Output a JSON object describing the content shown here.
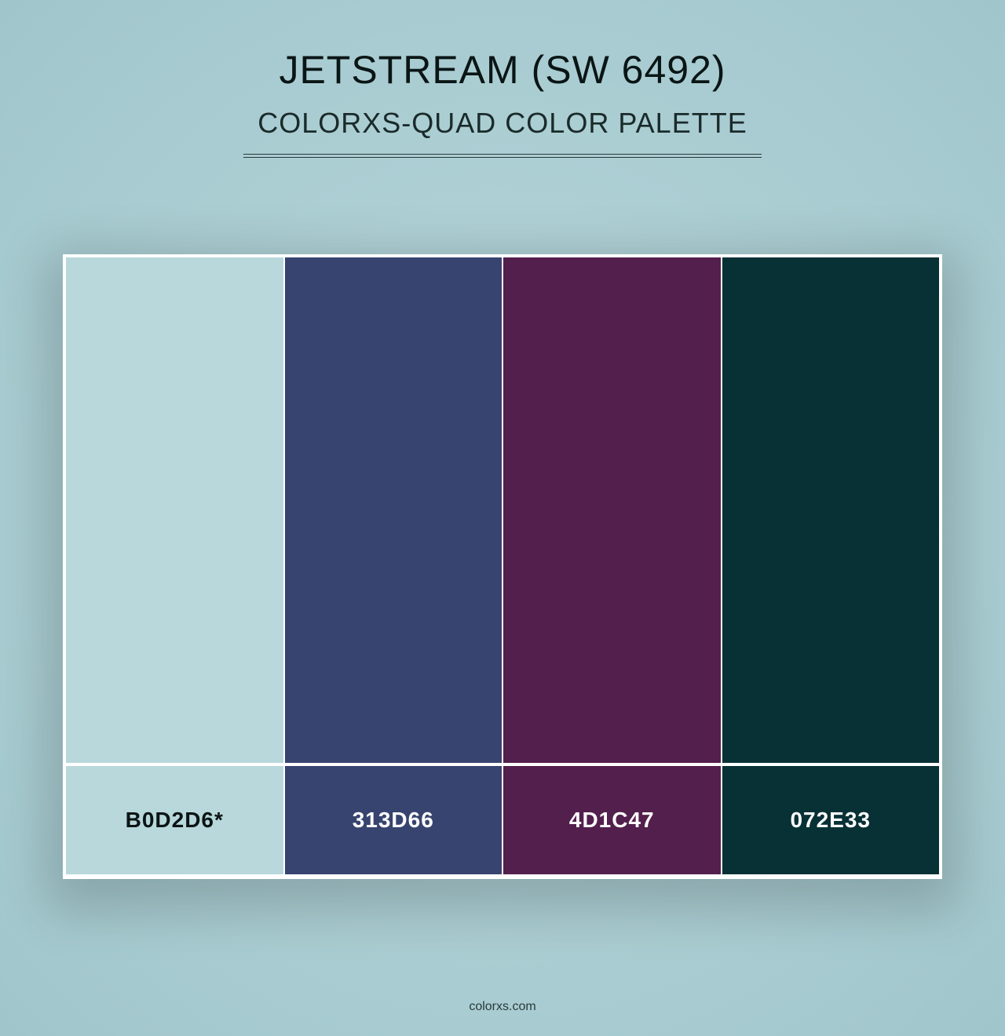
{
  "page": {
    "background_gradient_inner": "#b8d7db",
    "background_gradient_outer": "#a0c6cc"
  },
  "header": {
    "title": "JETSTREAM (SW 6492)",
    "subtitle": "COLORXS-QUAD COLOR PALETTE",
    "title_color": "#0a1515",
    "subtitle_color": "#1a2a2a",
    "divider_color": "#2a3838",
    "title_fontsize": 50,
    "subtitle_fontsize": 36
  },
  "palette": {
    "card_background": "#ffffff",
    "card_shadow": "rgba(0,0,0,0.18)",
    "swatch_height": 648,
    "label_height": 144,
    "swatches": [
      {
        "hex": "#b8d8db",
        "label": "B0D2D6*",
        "label_text_color": "#0b1414"
      },
      {
        "hex": "#37446f",
        "label": "313D66",
        "label_text_color": "#ffffff"
      },
      {
        "hex": "#531f4c",
        "label": "4D1C47",
        "label_text_color": "#ffffff"
      },
      {
        "hex": "#083136",
        "label": "072E33",
        "label_text_color": "#ffffff"
      }
    ],
    "label_fontsize": 28,
    "label_fontweight": 700
  },
  "footer": {
    "text": "colorxs.com",
    "color": "#2a3a3a",
    "fontsize": 16
  }
}
